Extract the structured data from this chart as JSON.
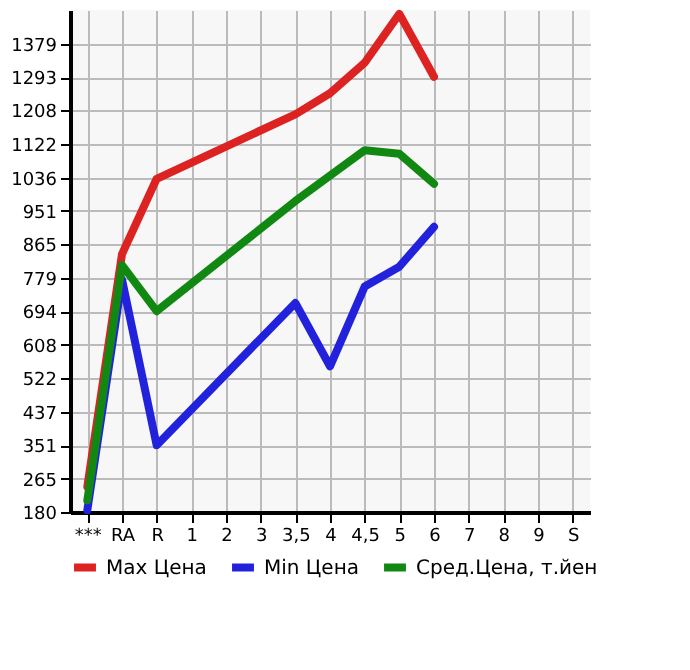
{
  "chart_data": {
    "type": "line",
    "categories": [
      "***",
      "RA",
      "R",
      "1",
      "2",
      "3",
      "3,5",
      "4",
      "4,5",
      "5",
      "6",
      "7",
      "8",
      "9",
      "S"
    ],
    "series": [
      {
        "name": "Max Цена",
        "color": "#dd2222",
        "values": [
          245,
          840,
          1033,
          null,
          null,
          null,
          1198,
          1252,
          1330,
          1455,
          1294,
          null,
          null,
          null,
          null
        ]
      },
      {
        "name": "Min Цена",
        "color": "#2222dd",
        "values": [
          185,
          775,
          351,
          null,
          null,
          null,
          715,
          553,
          757,
          808,
          910,
          null,
          null,
          null,
          null
        ]
      },
      {
        "name": "Сред.Цена, т.йен",
        "color": "#118811",
        "values": [
          210,
          812,
          694,
          null,
          null,
          null,
          976,
          null,
          1106,
          1097,
          1020,
          null,
          null,
          null,
          null
        ]
      }
    ],
    "ylim": [
      180,
      1465
    ],
    "yticks": [
      180,
      265,
      351,
      437,
      522,
      608,
      694,
      779,
      865,
      951,
      1036,
      1122,
      1208,
      1293,
      1379
    ],
    "grid": true,
    "legend": "bottom",
    "marker": "none",
    "line_style": "solid"
  }
}
